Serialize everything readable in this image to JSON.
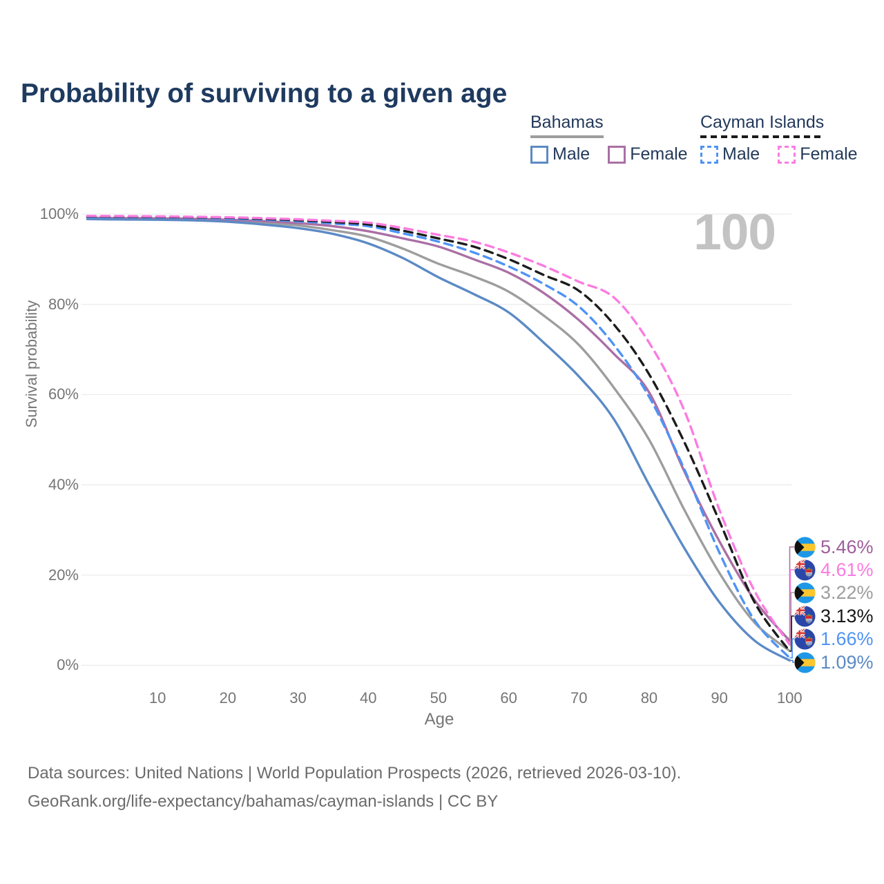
{
  "title": "Probability of surviving to a given age",
  "watermark": "100",
  "legend": {
    "groups": [
      {
        "name": "Bahamas",
        "line_style": "solid",
        "line_color": "#9d9d9d",
        "items": [
          {
            "label": "Male",
            "color": "#5b8ac5"
          },
          {
            "label": "Female",
            "color": "#aa6fa4"
          }
        ]
      },
      {
        "name": "Cayman Islands",
        "line_style": "dashed",
        "line_color": "#1a1a1a",
        "items": [
          {
            "label": "Male",
            "color": "#4f93f5"
          },
          {
            "label": "Female",
            "color": "#fb7ce0"
          }
        ]
      }
    ]
  },
  "chart_data": {
    "type": "line",
    "title": "Probability of surviving to a given age",
    "xlabel": "Age",
    "ylabel": "Survival probability",
    "xlim": [
      0,
      100
    ],
    "ylim": [
      0,
      100
    ],
    "xticks": [
      10,
      20,
      30,
      40,
      50,
      60,
      70,
      80,
      90,
      100
    ],
    "yticks": [
      0,
      20,
      40,
      60,
      80,
      100
    ],
    "ytick_suffix": "%",
    "grid": "horizontal",
    "legend_position": "top-right",
    "x": [
      0,
      5,
      10,
      15,
      20,
      25,
      30,
      35,
      40,
      45,
      50,
      55,
      60,
      65,
      70,
      75,
      80,
      85,
      90,
      95,
      100
    ],
    "series": [
      {
        "name": "Bahamas (both sexes)",
        "country": "Bahamas",
        "sex": "both",
        "color": "#9d9d9d",
        "dash": false,
        "values": [
          99.05,
          98.95,
          98.9,
          98.75,
          98.55,
          98.1,
          97.5,
          96.4,
          95.0,
          92.3,
          89.0,
          86.2,
          82.8,
          77.5,
          71.0,
          61.5,
          50.0,
          34.5,
          20.5,
          9.5,
          3.22
        ],
        "end_label": "3.22%"
      },
      {
        "name": "Bahamas Female",
        "country": "Bahamas",
        "sex": "female",
        "color": "#aa6fa4",
        "dash": false,
        "values": [
          99.2,
          99.1,
          99.05,
          98.95,
          98.75,
          98.45,
          98.0,
          97.3,
          96.2,
          94.6,
          92.8,
          90.0,
          87.0,
          82.5,
          76.5,
          69.0,
          60.5,
          43.0,
          27.5,
          14.5,
          5.46
        ],
        "end_label": "5.46%"
      },
      {
        "name": "Bahamas Male",
        "country": "Bahamas",
        "sex": "male",
        "color": "#5b8ac5",
        "dash": false,
        "values": [
          98.9,
          98.8,
          98.75,
          98.6,
          98.3,
          97.7,
          96.9,
          95.6,
          93.5,
          90.2,
          86.0,
          82.3,
          78.2,
          71.5,
          64.0,
          54.5,
          40.0,
          26.0,
          14.0,
          5.5,
          1.09
        ],
        "end_label": "1.09%"
      },
      {
        "name": "Cayman Islands Male",
        "country": "Cayman Islands",
        "sex": "male",
        "color": "#4f93f5",
        "dash": true,
        "values": [
          99.4,
          99.35,
          99.3,
          99.2,
          99.0,
          98.75,
          98.4,
          97.9,
          97.3,
          95.7,
          93.9,
          91.5,
          88.4,
          84.5,
          79.5,
          71.0,
          59.5,
          43.5,
          25.0,
          10.0,
          1.66
        ],
        "end_label": "1.66%"
      },
      {
        "name": "Cayman Islands (both sexes)",
        "country": "Cayman Islands",
        "sex": "both",
        "color": "#1c1c1c",
        "dash": true,
        "values": [
          99.5,
          99.45,
          99.4,
          99.3,
          99.2,
          98.95,
          98.65,
          98.25,
          97.7,
          96.3,
          94.6,
          92.8,
          90.0,
          86.5,
          83.0,
          75.5,
          64.5,
          49.5,
          32.0,
          14.0,
          3.13
        ],
        "end_label": "3.13%"
      },
      {
        "name": "Cayman Islands Female",
        "country": "Cayman Islands",
        "sex": "female",
        "color": "#fb7ce0",
        "dash": true,
        "values": [
          99.6,
          99.55,
          99.5,
          99.4,
          99.3,
          99.1,
          98.85,
          98.5,
          98.1,
          96.9,
          95.4,
          93.9,
          91.5,
          88.5,
          85.0,
          81.5,
          71.5,
          56.5,
          34.5,
          16.5,
          4.61
        ],
        "end_label": "4.61%"
      }
    ]
  },
  "end_labels": [
    {
      "value": "5.46%",
      "series": "Bahamas Female",
      "flag": "bahamas",
      "text_color": "#a05d9c"
    },
    {
      "value": "4.61%",
      "series": "Cayman Islands Female",
      "flag": "cayman",
      "text_color": "#fa7be0"
    },
    {
      "value": "3.22%",
      "series": "Bahamas (both sexes)",
      "flag": "bahamas",
      "text_color": "#9d9d9d"
    },
    {
      "value": "3.13%",
      "series": "Cayman Islands (both sexes)",
      "flag": "cayman",
      "text_color": "#161616"
    },
    {
      "value": "1.66%",
      "series": "Cayman Islands Male",
      "flag": "cayman",
      "text_color": "#4f93f5"
    },
    {
      "value": "1.09%",
      "series": "Bahamas Male",
      "flag": "bahamas",
      "text_color": "#5b8ac5"
    }
  ],
  "footer": {
    "line1": "Data sources: United Nations | World Population Prospects (2026, retrieved 2026-03-10).",
    "line2": "GeoRank.org/life-expectancy/bahamas/cayman-islands | CC BY"
  }
}
